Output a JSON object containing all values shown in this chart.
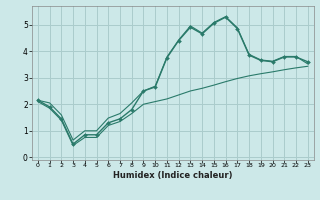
{
  "xlabel": "Humidex (Indice chaleur)",
  "ylabel": "",
  "background_color": "#cce8e8",
  "grid_color": "#aacccc",
  "line_color": "#2a7a6a",
  "xlim": [
    -0.5,
    23.5
  ],
  "ylim": [
    -0.1,
    5.7
  ],
  "xticks": [
    0,
    1,
    2,
    3,
    4,
    5,
    6,
    7,
    8,
    9,
    10,
    11,
    12,
    13,
    14,
    15,
    16,
    17,
    18,
    19,
    20,
    21,
    22,
    23
  ],
  "yticks": [
    0,
    1,
    2,
    3,
    4,
    5
  ],
  "main_x": [
    0,
    1,
    2,
    3,
    4,
    5,
    6,
    7,
    8,
    9,
    10,
    11,
    12,
    13,
    14,
    15,
    16,
    17,
    18,
    19,
    20,
    21,
    22,
    23
  ],
  "main_y": [
    2.15,
    1.9,
    1.45,
    0.5,
    0.85,
    0.85,
    1.3,
    1.45,
    1.8,
    2.5,
    2.65,
    3.75,
    4.4,
    4.9,
    4.65,
    5.05,
    5.28,
    4.85,
    3.85,
    3.65,
    3.6,
    3.78,
    3.78,
    3.6
  ],
  "lower_x": [
    0,
    1,
    2,
    3,
    4,
    5,
    6,
    7,
    8,
    9,
    10,
    11,
    12,
    13,
    14,
    15,
    16,
    17,
    18,
    19,
    20,
    21,
    22,
    23
  ],
  "lower_y": [
    2.1,
    1.85,
    1.4,
    0.45,
    0.75,
    0.75,
    1.2,
    1.35,
    1.65,
    2.0,
    2.1,
    2.2,
    2.35,
    2.5,
    2.6,
    2.72,
    2.85,
    2.97,
    3.07,
    3.15,
    3.22,
    3.3,
    3.37,
    3.43
  ],
  "upper_x": [
    0,
    1,
    2,
    3,
    4,
    5,
    6,
    7,
    8,
    9,
    10,
    11,
    12,
    13,
    14,
    15,
    16,
    17,
    18,
    19,
    20,
    21,
    22,
    23
  ],
  "upper_y": [
    2.15,
    2.05,
    1.6,
    0.65,
    1.0,
    1.0,
    1.48,
    1.65,
    2.05,
    2.5,
    2.68,
    3.78,
    4.42,
    4.95,
    4.68,
    5.08,
    5.3,
    4.88,
    3.88,
    3.67,
    3.62,
    3.8,
    3.8,
    3.52
  ]
}
